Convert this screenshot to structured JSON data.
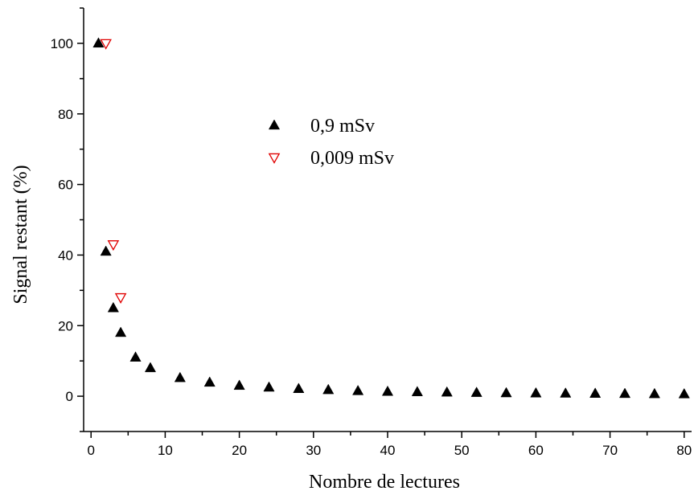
{
  "chart_data": {
    "type": "scatter",
    "xlabel": "Nombre de lectures",
    "ylabel": "Signal restant (%)",
    "xlim": [
      -1,
      81
    ],
    "ylim": [
      -10,
      110
    ],
    "xticks": [
      0,
      10,
      20,
      30,
      40,
      50,
      60,
      70,
      80
    ],
    "yticks": [
      0,
      20,
      40,
      60,
      80,
      100
    ],
    "grid": false,
    "legend_position": "center",
    "series": [
      {
        "name": "0,9 mSv",
        "marker": "triangle-up",
        "color": "#000000",
        "x": [
          1,
          2,
          3,
          4,
          6,
          8,
          12,
          16,
          20,
          24,
          28,
          32,
          36,
          40,
          44,
          48,
          52,
          56,
          60,
          64,
          68,
          72,
          76,
          80
        ],
        "y": [
          100,
          41,
          25,
          18,
          11,
          8,
          5.2,
          3.9,
          3.0,
          2.5,
          2.1,
          1.8,
          1.5,
          1.3,
          1.2,
          1.1,
          1.0,
          0.9,
          0.85,
          0.8,
          0.75,
          0.7,
          0.65,
          0.6
        ]
      },
      {
        "name": "0,009 mSv",
        "marker": "triangle-down-open",
        "color": "#e00000",
        "x": [
          2,
          3,
          4
        ],
        "y": [
          100,
          43,
          28
        ]
      }
    ]
  }
}
